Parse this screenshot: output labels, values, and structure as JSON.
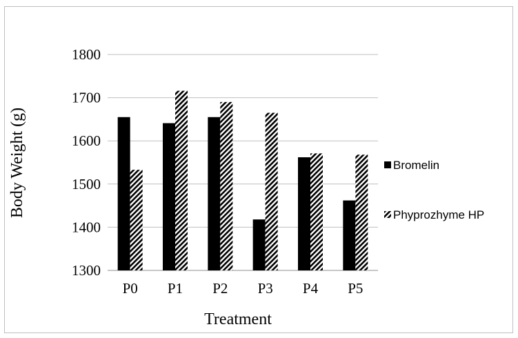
{
  "chart_data": {
    "type": "bar",
    "categories": [
      "P0",
      "P1",
      "P2",
      "P3",
      "P4",
      "P5"
    ],
    "series": [
      {
        "name": "Bromelin",
        "values": [
          1655,
          1641,
          1655,
          1418,
          1562,
          1462
        ],
        "color": "#000000",
        "pattern": "solid"
      },
      {
        "name": "Phyprozhyme HP",
        "values": [
          1533,
          1716,
          1690,
          1665,
          1571,
          1568
        ],
        "color": "#000000",
        "pattern": "diagonal-stripes"
      }
    ],
    "xlabel": "Treatment",
    "ylabel": "Body Weight (g)",
    "ylim": [
      1300,
      1800
    ],
    "yticks": [
      1300,
      1400,
      1500,
      1600,
      1700,
      1800
    ],
    "grid": true,
    "legend_position": "right"
  }
}
